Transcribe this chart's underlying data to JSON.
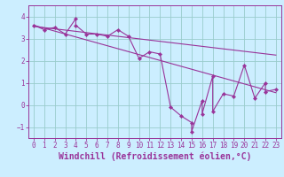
{
  "title": "",
  "xlabel": "Windchill (Refroidissement éolien,°C)",
  "ylabel": "",
  "xlim": [
    -0.5,
    23.5
  ],
  "ylim": [
    -1.5,
    4.5
  ],
  "xticks": [
    0,
    1,
    2,
    3,
    4,
    5,
    6,
    7,
    8,
    9,
    10,
    11,
    12,
    13,
    14,
    15,
    16,
    17,
    18,
    19,
    20,
    21,
    22,
    23
  ],
  "yticks": [
    -1,
    0,
    1,
    2,
    3,
    4
  ],
  "bg_color": "#cceeff",
  "line_color": "#993399",
  "grid_color": "#99cccc",
  "data_x": [
    0,
    1,
    2,
    3,
    4,
    4,
    5,
    6,
    7,
    8,
    9,
    10,
    11,
    12,
    13,
    14,
    15,
    15,
    16,
    16,
    17,
    17,
    18,
    19,
    20,
    21,
    22,
    22,
    23
  ],
  "data_y": [
    3.6,
    3.4,
    3.5,
    3.2,
    3.9,
    3.6,
    3.2,
    3.2,
    3.1,
    3.4,
    3.1,
    2.1,
    2.4,
    2.3,
    -0.1,
    -0.5,
    -0.8,
    -1.2,
    0.2,
    -0.4,
    1.3,
    -0.3,
    0.5,
    0.4,
    1.8,
    0.3,
    1.0,
    0.6,
    0.7
  ],
  "trend1_x": [
    0,
    23
  ],
  "trend1_y": [
    3.6,
    0.55
  ],
  "trend2_x": [
    0,
    23
  ],
  "trend2_y": [
    3.55,
    2.25
  ],
  "font_color": "#993399",
  "tick_fontsize": 5.5,
  "xlabel_fontsize": 7.0,
  "marker_size": 2.2,
  "line_width": 0.8
}
